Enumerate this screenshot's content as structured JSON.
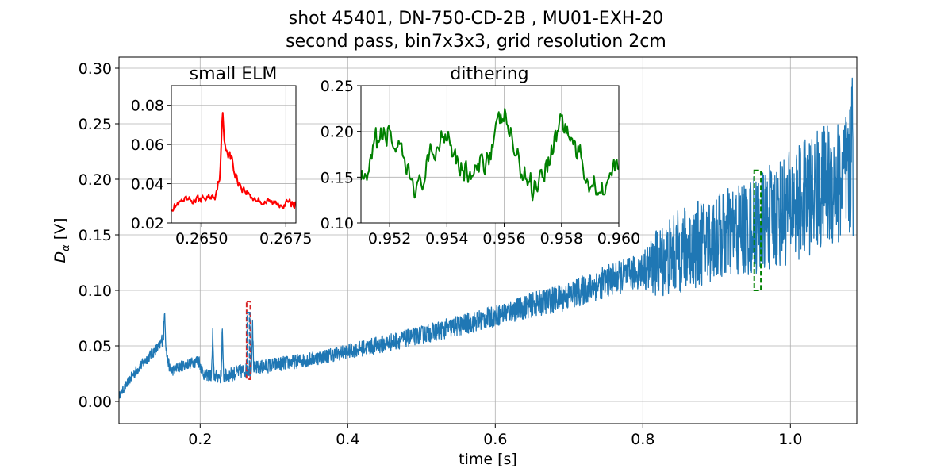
{
  "figure": {
    "title_line1": "shot 45401, DN-750-CD-2B , MU01-EXH-20",
    "title_line2": "second pass, bin7x3x3, grid resolution 2cm"
  },
  "chart_data": [
    {
      "id": "main",
      "type": "line",
      "xlabel": "time [s]",
      "ylabel_main": "D",
      "ylabel_sub": "α",
      "ylabel_unit": " [V]",
      "xlim": [
        0.09,
        1.09
      ],
      "ylim": [
        -0.02,
        0.31
      ],
      "xticks": [
        0.2,
        0.4,
        0.6,
        0.8,
        1.0
      ],
      "xtick_labels": [
        "0.2",
        "0.4",
        "0.6",
        "0.8",
        "1.0"
      ],
      "yticks": [
        0.0,
        0.05,
        0.1,
        0.15,
        0.2,
        0.25,
        0.3
      ],
      "ytick_labels": [
        "0.00",
        "0.05",
        "0.10",
        "0.15",
        "0.20",
        "0.25",
        "0.30"
      ],
      "grid": true,
      "series": [
        {
          "color": "#1f77b4",
          "x": [
            0.09,
            0.11,
            0.13,
            0.145,
            0.152,
            0.155,
            0.16,
            0.175,
            0.19,
            0.198,
            0.205,
            0.23,
            0.26,
            0.3,
            0.35,
            0.4,
            0.45,
            0.5,
            0.55,
            0.6,
            0.65,
            0.7,
            0.75,
            0.8,
            0.82,
            0.85,
            0.9,
            0.95,
            1.0,
            1.05,
            1.085
          ],
          "y": [
            0.005,
            0.025,
            0.04,
            0.05,
            0.062,
            0.04,
            0.027,
            0.032,
            0.035,
            0.037,
            0.024,
            0.022,
            0.028,
            0.033,
            0.038,
            0.045,
            0.052,
            0.06,
            0.068,
            0.077,
            0.087,
            0.095,
            0.108,
            0.118,
            0.125,
            0.135,
            0.148,
            0.158,
            0.175,
            0.195,
            0.2
          ],
          "noise_amplitude": [
            0.002,
            0.003,
            0.003,
            0.003,
            0.005,
            0.003,
            0.003,
            0.003,
            0.003,
            0.004,
            0.003,
            0.004,
            0.004,
            0.004,
            0.004,
            0.004,
            0.005,
            0.005,
            0.006,
            0.006,
            0.007,
            0.008,
            0.009,
            0.01,
            0.02,
            0.024,
            0.025,
            0.028,
            0.032,
            0.035,
            0.04
          ],
          "spikes": [
            {
              "x": 0.152,
              "y": 0.086
            },
            {
              "x": 0.217,
              "y": 0.064
            },
            {
              "x": 0.23,
              "y": 0.07
            },
            {
              "x": 0.271,
              "y": 0.075
            },
            {
              "x": 1.083,
              "y": 0.295
            }
          ]
        }
      ],
      "highlight_boxes": [
        {
          "color": "#d62728",
          "x": [
            0.263,
            0.268
          ],
          "y": [
            0.02,
            0.09
          ]
        },
        {
          "color": "#1f77b4",
          "x": [
            0.264,
            0.267
          ],
          "y": [
            0.024,
            0.08
          ]
        },
        {
          "color": "#008000",
          "x": [
            0.951,
            0.96
          ],
          "y": [
            0.1,
            0.208
          ]
        }
      ]
    },
    {
      "id": "inset_small_elm",
      "type": "line",
      "title": "small ELM",
      "xlim": [
        0.2641,
        0.2678
      ],
      "ylim": [
        0.02,
        0.09
      ],
      "xticks": [
        0.265,
        0.2675
      ],
      "xtick_labels": [
        "0.2650",
        "0.2675"
      ],
      "yticks": [
        0.02,
        0.04,
        0.06,
        0.08
      ],
      "ytick_labels": [
        "0.02",
        "0.04",
        "0.06",
        "0.08"
      ],
      "grid": true,
      "series": [
        {
          "color": "#ff0000",
          "x": [
            0.2641,
            0.2645,
            0.265,
            0.2654,
            0.26555,
            0.26562,
            0.26567,
            0.26575,
            0.2659,
            0.266,
            0.2662,
            0.2665,
            0.2668,
            0.2672,
            0.2678
          ],
          "y": [
            0.028,
            0.031,
            0.032,
            0.034,
            0.045,
            0.078,
            0.062,
            0.058,
            0.052,
            0.044,
            0.038,
            0.033,
            0.031,
            0.03,
            0.03
          ],
          "noise_amplitude": [
            0.002,
            0.002,
            0.002,
            0.002,
            0.002,
            0.0,
            0.002,
            0.003,
            0.003,
            0.003,
            0.002,
            0.002,
            0.002,
            0.002,
            0.002
          ]
        }
      ]
    },
    {
      "id": "inset_dithering",
      "type": "line",
      "title": "dithering",
      "xlim": [
        0.951,
        0.96
      ],
      "ylim": [
        0.1,
        0.25
      ],
      "xticks": [
        0.952,
        0.954,
        0.956,
        0.958,
        0.96
      ],
      "xtick_labels": [
        "0.952",
        "0.954",
        "0.956",
        "0.958",
        "0.960"
      ],
      "yticks": [
        0.1,
        0.15,
        0.2,
        0.25
      ],
      "ytick_labels": [
        "0.10",
        "0.15",
        "0.20",
        "0.25"
      ],
      "grid": true,
      "series": [
        {
          "color": "#008000",
          "x": [
            0.951,
            0.9512,
            0.9515,
            0.952,
            0.9525,
            0.953,
            0.9535,
            0.954,
            0.9545,
            0.955,
            0.9555,
            0.956,
            0.9565,
            0.957,
            0.9575,
            0.958,
            0.9585,
            0.959,
            0.9595,
            0.96
          ],
          "y": [
            0.155,
            0.14,
            0.185,
            0.2,
            0.16,
            0.135,
            0.175,
            0.205,
            0.16,
            0.15,
            0.18,
            0.22,
            0.165,
            0.14,
            0.165,
            0.215,
            0.18,
            0.145,
            0.14,
            0.165
          ],
          "noise_amplitude": [
            0.01,
            0.01,
            0.015,
            0.015,
            0.015,
            0.012,
            0.015,
            0.015,
            0.015,
            0.015,
            0.015,
            0.012,
            0.015,
            0.015,
            0.015,
            0.015,
            0.015,
            0.015,
            0.012,
            0.01
          ]
        }
      ]
    }
  ]
}
